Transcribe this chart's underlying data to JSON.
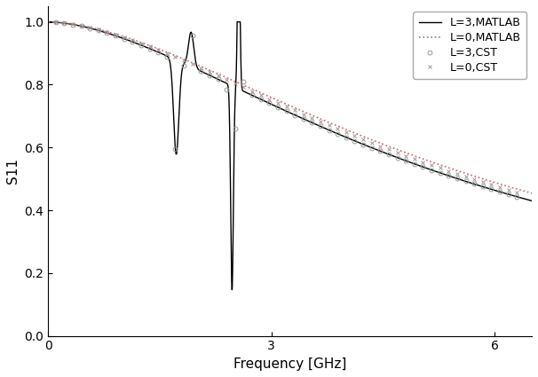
{
  "title": "",
  "xlabel": "Frequency [GHz]",
  "ylabel": "S11",
  "xlim": [
    0,
    6.5
  ],
  "ylim": [
    0.0,
    1.05
  ],
  "xticks": [
    0,
    3,
    6
  ],
  "yticks": [
    0.0,
    0.2,
    0.4,
    0.6,
    0.8,
    1.0
  ],
  "legend_labels": [
    "L=3,MATLAB",
    "L=0,MATLAB",
    "L=3,CST",
    "L=0,CST"
  ],
  "line_color_L3_matlab": "#000000",
  "line_color_L0_matlab": "#cc6666",
  "marker_color_cst": "#999999",
  "background_color": "#ffffff"
}
